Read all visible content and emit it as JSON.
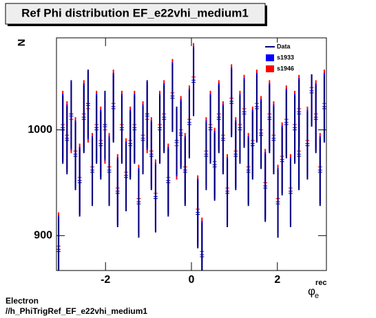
{
  "chart_data": {
    "type": "errorbar",
    "title": "Ref Phi distribution EF_e22vhi_medium1",
    "y_label": "N",
    "x_label": "φ",
    "x_label_sub": "e",
    "x_label_sup": "rec",
    "footer": [
      "Electron",
      "//h_PhiTrigRef_EF_e22vhi_medium1"
    ],
    "xlim": [
      -3.1416,
      3.1416
    ],
    "xticks": [
      -2,
      0,
      2
    ],
    "ylim": [
      867,
      1087
    ],
    "yticks": [
      900,
      1000
    ],
    "legend": "upper right",
    "x": [
      -3.0925,
      -2.9943,
      -2.8962,
      -2.798,
      -2.6998,
      -2.6017,
      -2.5035,
      -2.4053,
      -2.3072,
      -2.209,
      -2.1108,
      -2.0126,
      -1.9145,
      -1.8163,
      -1.7181,
      -1.62,
      -1.5218,
      -1.4236,
      -1.3254,
      -1.2273,
      -1.1291,
      -1.0309,
      -0.9327,
      -0.8346,
      -0.7364,
      -0.6382,
      -0.54,
      -0.4418,
      -0.3437,
      -0.2455,
      -0.1473,
      -0.0491,
      0.0491,
      0.1473,
      0.2455,
      0.3437,
      0.4418,
      0.54,
      0.6382,
      0.7364,
      0.8346,
      0.9327,
      1.0309,
      1.1291,
      1.2273,
      1.3254,
      1.4236,
      1.5218,
      1.62,
      1.7181,
      1.8163,
      1.9145,
      2.0126,
      2.1108,
      2.209,
      2.3072,
      2.4053,
      2.5035,
      2.5017,
      2.6998,
      2.798,
      2.8962,
      2.9943,
      3.0925
    ],
    "series": [
      {
        "name": "s1946",
        "color": "#ff0000",
        "values": [
          890,
          1005,
          995,
          1010,
          980,
          955,
          1015,
          1020,
          965,
          1005,
          990,
          1000,
          965,
          1025,
          945,
          1005,
          960,
          990,
          1005,
          935,
          995,
          1010,
          980,
          940,
          1005,
          1015,
          955,
          1035,
          985,
          1000,
          965,
          1010,
          1050,
          925,
          885,
          980,
          1005,
          970,
          1015,
          995,
          945,
          1030,
          980,
          1005,
          1020,
          965,
          990,
          1025,
          1000,
          950,
          1015,
          995,
          935,
          975,
          1010,
          945,
          1005,
          1020,
          980,
          990,
          1040,
          1015,
          965,
          1025
        ],
        "errors": [
          32,
          32,
          32,
          32,
          32,
          32,
          32,
          32,
          32,
          32,
          32,
          32,
          32,
          32,
          32,
          32,
          32,
          32,
          32,
          32,
          32,
          32,
          32,
          32,
          32,
          32,
          32,
          32,
          32,
          32,
          32,
          32,
          32,
          32,
          32,
          32,
          32,
          32,
          32,
          32,
          32,
          32,
          32,
          32,
          32,
          32,
          32,
          32,
          32,
          32,
          32,
          32,
          32,
          32,
          32,
          32,
          32,
          32,
          32,
          32,
          32,
          32,
          32,
          32
        ]
      },
      {
        "name": "s1933",
        "color": "#0000ff",
        "values": [
          887,
          1002,
          992,
          1013,
          977,
          952,
          1012,
          1023,
          962,
          1002,
          987,
          1003,
          962,
          1022,
          942,
          1002,
          957,
          987,
          1002,
          932,
          992,
          1013,
          977,
          937,
          1002,
          1012,
          952,
          1032,
          988,
          997,
          962,
          1007,
          1047,
          922,
          882,
          977,
          1002,
          967,
          1012,
          992,
          942,
          1027,
          977,
          1002,
          1017,
          962,
          987,
          1022,
          997,
          947,
          1012,
          992,
          932,
          972,
          1007,
          942,
          1002,
          1017,
          977,
          987,
          1037,
          1012,
          962,
          1022
        ],
        "errors": [
          32,
          32,
          32,
          32,
          32,
          32,
          32,
          32,
          32,
          32,
          32,
          32,
          32,
          32,
          32,
          32,
          32,
          32,
          32,
          32,
          32,
          32,
          32,
          32,
          32,
          32,
          32,
          32,
          32,
          32,
          32,
          32,
          32,
          32,
          32,
          32,
          32,
          32,
          32,
          32,
          32,
          32,
          32,
          32,
          32,
          32,
          32,
          32,
          32,
          32,
          32,
          32,
          32,
          32,
          32,
          32,
          32,
          32,
          32,
          32,
          32,
          32,
          32,
          32
        ]
      },
      {
        "name": "Data",
        "color": "#000080",
        "values": [
          885,
          1000,
          990,
          1015,
          975,
          950,
          1010,
          1025,
          960,
          1000,
          985,
          1005,
          960,
          1020,
          940,
          1000,
          955,
          985,
          1000,
          930,
          990,
          1015,
          975,
          935,
          1000,
          1010,
          950,
          1030,
          990,
          995,
          960,
          1005,
          1045,
          920,
          880,
          975,
          1000,
          965,
          1010,
          990,
          940,
          1025,
          975,
          1000,
          1015,
          960,
          985,
          1020,
          995,
          945,
          1010,
          990,
          930,
          970,
          1005,
          940,
          1000,
          1015,
          975,
          985,
          1035,
          1010,
          960,
          1020
        ],
        "errors": [
          32,
          32,
          32,
          32,
          32,
          32,
          32,
          32,
          32,
          32,
          32,
          32,
          32,
          32,
          32,
          32,
          32,
          32,
          32,
          32,
          32,
          32,
          32,
          32,
          32,
          32,
          32,
          32,
          32,
          32,
          32,
          32,
          32,
          32,
          32,
          32,
          32,
          32,
          32,
          32,
          32,
          32,
          32,
          32,
          32,
          32,
          32,
          32,
          32,
          32,
          32,
          32,
          32,
          32,
          32,
          32,
          32,
          32,
          32,
          32,
          32,
          32,
          32,
          32
        ]
      }
    ]
  }
}
